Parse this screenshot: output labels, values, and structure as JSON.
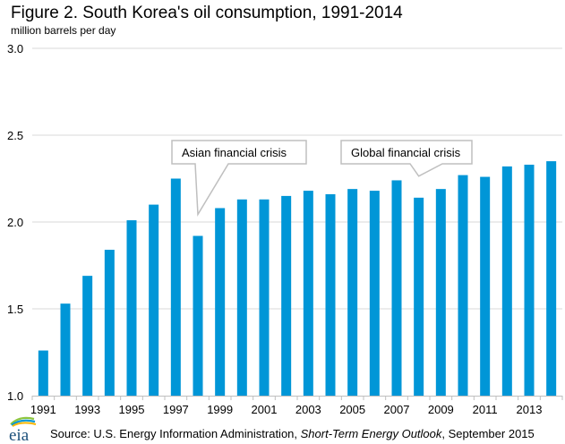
{
  "chart_data": {
    "type": "bar",
    "title": "Figure 2. South Korea's oil consumption, 1991-2014",
    "ylabel": "million barrels per day",
    "xlabel": "",
    "ylim": [
      1.0,
      3.0
    ],
    "yticks": [
      1.0,
      1.5,
      2.0,
      2.5,
      3.0
    ],
    "ytick_labels": [
      "1.0",
      "1.5",
      "2.0",
      "2.5",
      "3.0"
    ],
    "grid": true,
    "bar_color": "#0096d7",
    "categories": [
      "1991",
      "1992",
      "1993",
      "1994",
      "1995",
      "1996",
      "1997",
      "1998",
      "1999",
      "2000",
      "2001",
      "2002",
      "2003",
      "2004",
      "2005",
      "2006",
      "2007",
      "2008",
      "2009",
      "2010",
      "2011",
      "2012",
      "2013",
      "2014"
    ],
    "xtick_labels": [
      "1991",
      "",
      "1993",
      "",
      "1995",
      "",
      "1997",
      "",
      "1999",
      "",
      "2001",
      "",
      "2003",
      "",
      "2005",
      "",
      "2007",
      "",
      "2009",
      "",
      "2011",
      "",
      "2013",
      ""
    ],
    "values": [
      1.26,
      1.53,
      1.69,
      1.84,
      2.01,
      2.1,
      2.25,
      1.92,
      2.08,
      2.13,
      2.13,
      2.15,
      2.18,
      2.16,
      2.19,
      2.18,
      2.24,
      2.14,
      2.19,
      2.27,
      2.26,
      2.32,
      2.33,
      2.35
    ],
    "annotations": [
      {
        "text": "Asian financial  crisis",
        "points_to": "1998"
      },
      {
        "text": "Global financial  crisis",
        "points_to": "2008"
      }
    ]
  },
  "header": {
    "title": "Figure 2. South Korea's oil consumption, 1991-2014",
    "units": "million barrels  per day"
  },
  "footer": {
    "logo": "eia-logo",
    "source_prefix": "Source:  U.S. Energy Information  Administration, ",
    "source_italic": "Short-Term  Energy  Outlook",
    "source_suffix": ", September  2015"
  }
}
